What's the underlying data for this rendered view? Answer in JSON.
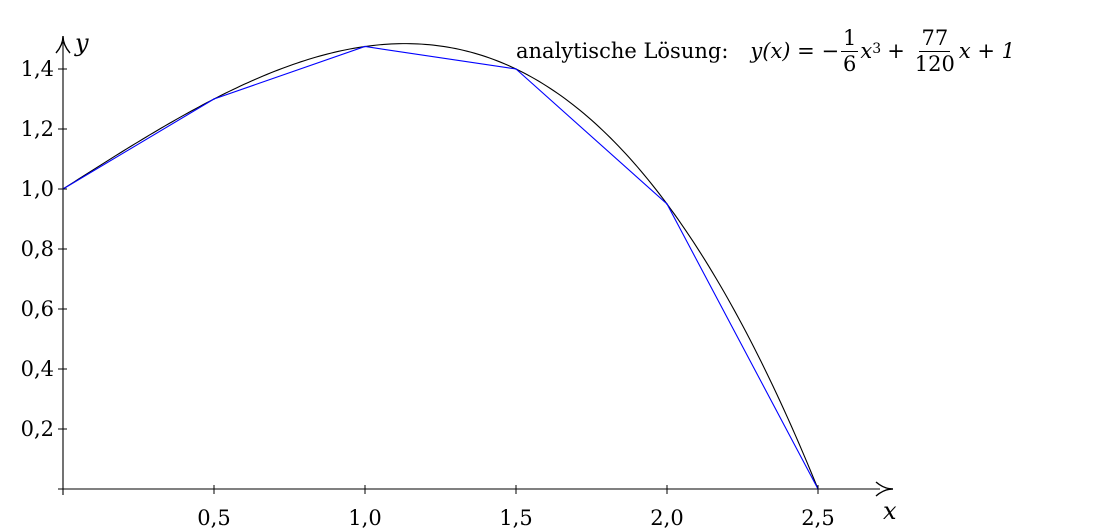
{
  "chart_data": {
    "type": "line",
    "xlabel": "x",
    "ylabel": "y",
    "xlim": [
      0,
      2.5
    ],
    "ylim": [
      0,
      1.4
    ],
    "x_ticks": [
      {
        "value": 0.5,
        "label": "0,5"
      },
      {
        "value": 1.0,
        "label": "1,0"
      },
      {
        "value": 1.5,
        "label": "1,5"
      },
      {
        "value": 2.0,
        "label": "2,0"
      },
      {
        "value": 2.5,
        "label": "2,5"
      }
    ],
    "y_ticks": [
      {
        "value": 0.2,
        "label": "0,2"
      },
      {
        "value": 0.4,
        "label": "0,4"
      },
      {
        "value": 0.6,
        "label": "0,6"
      },
      {
        "value": 0.8,
        "label": "0,8"
      },
      {
        "value": 1.0,
        "label": "1,0"
      },
      {
        "value": 1.2,
        "label": "1,2"
      },
      {
        "value": 1.4,
        "label": "1,4"
      }
    ],
    "grid": false,
    "series": [
      {
        "kind": "analytic",
        "color": "#000000",
        "expression": "y = -x^3/6 + 77x/120 + 1",
        "coefficients": {
          "a3": -0.16666667,
          "a1": 0.64166667,
          "a0": 1
        }
      },
      {
        "kind": "polyline",
        "color": "#0000ff",
        "x": [
          0,
          0.5,
          1.0,
          1.5,
          2.0,
          2.5
        ],
        "y": [
          1.0,
          1.3,
          1.475,
          1.4,
          0.95,
          0.0
        ]
      }
    ],
    "annotation": {
      "label": "analytische Lösung:",
      "lhs": "y(x) = −",
      "frac1_num": "1",
      "frac1_den": "6",
      "var": "x",
      "exp": "3",
      "plus": "+",
      "frac2_num": "77",
      "frac2_den": "120",
      "tail": "x + 1"
    }
  }
}
